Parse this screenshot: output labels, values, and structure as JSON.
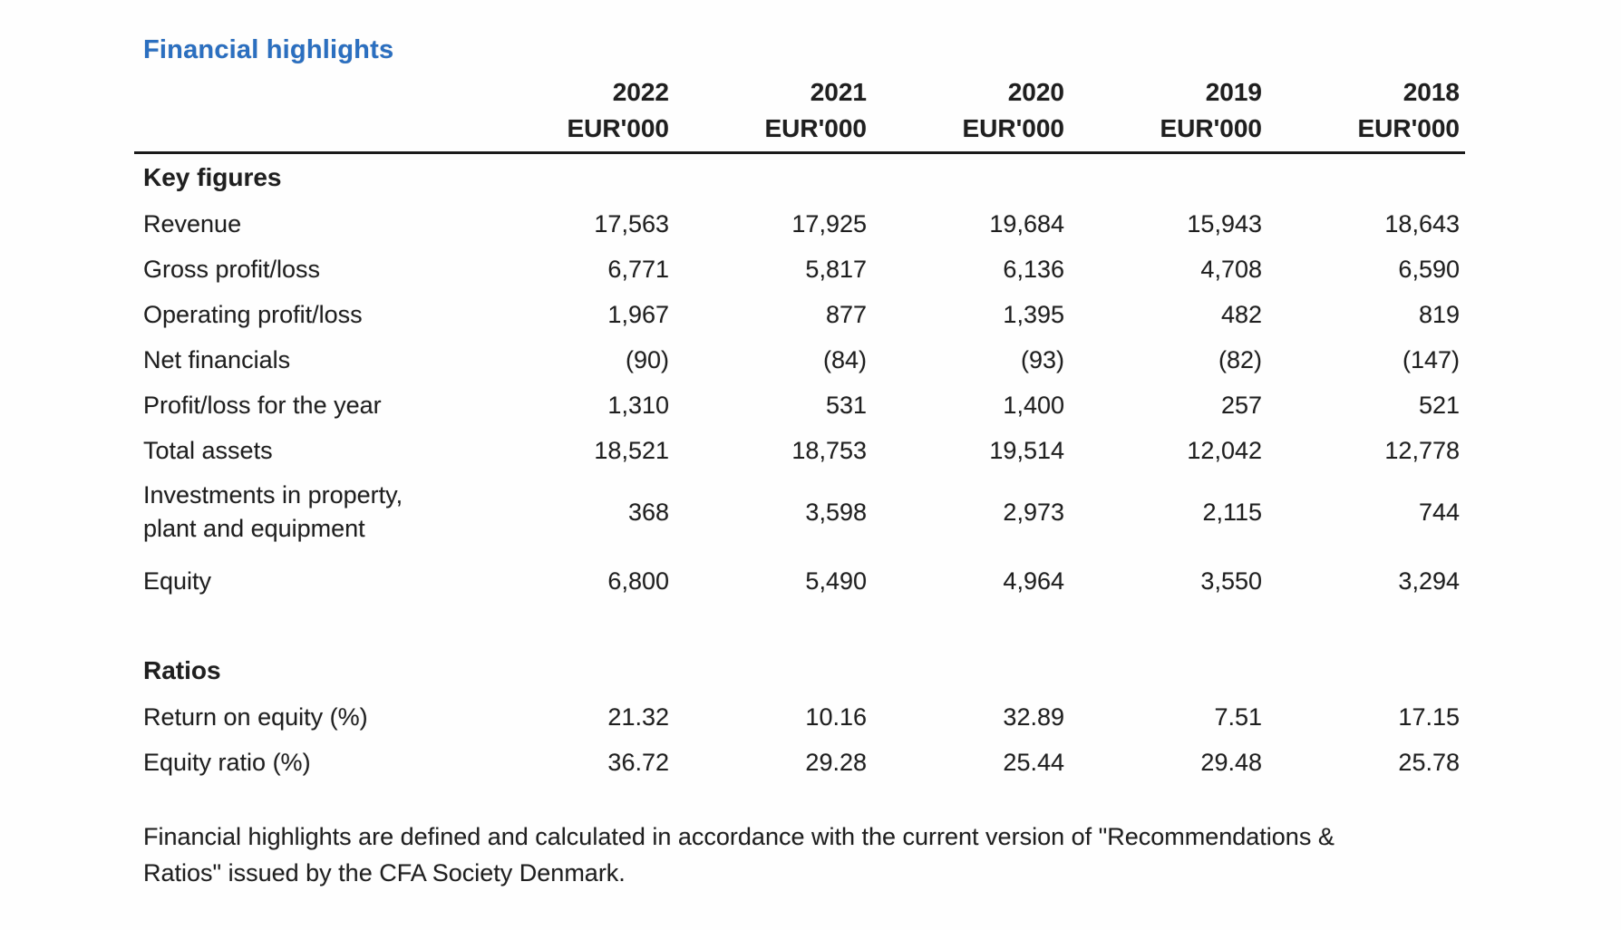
{
  "page": {
    "title": "Financial highlights",
    "accent_color": "#2b6fc0",
    "text_color": "#1f1f1f",
    "footnote": {
      "lines": [
        "Financial highlights are defined and calculated in accordance with the current version of \"Recommendations &",
        "Ratios\" issued by the CFA Society Denmark."
      ]
    }
  },
  "table": {
    "columns": [
      {
        "year": "2022",
        "unit": "EUR'000"
      },
      {
        "year": "2021",
        "unit": "EUR'000"
      },
      {
        "year": "2020",
        "unit": "EUR'000"
      },
      {
        "year": "2019",
        "unit": "EUR'000"
      },
      {
        "year": "2018",
        "unit": "EUR'000"
      }
    ],
    "sections": [
      {
        "heading": "Key figures",
        "rows": [
          {
            "label": "Revenue",
            "values": [
              "17,563",
              "17,925",
              "19,684",
              "15,943",
              "18,643"
            ]
          },
          {
            "label": "Gross profit/loss",
            "values": [
              "6,771",
              "5,817",
              "6,136",
              "4,708",
              "6,590"
            ]
          },
          {
            "label": "Operating profit/loss",
            "values": [
              "1,967",
              "877",
              "1,395",
              "482",
              "819"
            ]
          },
          {
            "label": "Net financials",
            "values": [
              "(90)",
              "(84)",
              "(93)",
              "(82)",
              "(147)"
            ]
          },
          {
            "label": "Profit/loss for the year",
            "values": [
              "1,310",
              "531",
              "1,400",
              "257",
              "521"
            ]
          },
          {
            "label": "Total assets",
            "values": [
              "18,521",
              "18,753",
              "19,514",
              "12,042",
              "12,778"
            ]
          },
          {
            "label": "Investments in property,",
            "label2": "plant and equipment",
            "values": [
              "368",
              "3,598",
              "2,973",
              "2,115",
              "744"
            ]
          },
          {
            "label": "Equity",
            "values": [
              "6,800",
              "5,490",
              "4,964",
              "3,550",
              "3,294"
            ]
          }
        ]
      },
      {
        "heading": "Ratios",
        "rows": [
          {
            "label": "Return on equity (%)",
            "values": [
              "21.32",
              "10.16",
              "32.89",
              "7.51",
              "17.15"
            ]
          },
          {
            "label": "Equity ratio (%)",
            "values": [
              "36.72",
              "29.28",
              "25.44",
              "29.48",
              "25.78"
            ]
          }
        ]
      }
    ]
  }
}
